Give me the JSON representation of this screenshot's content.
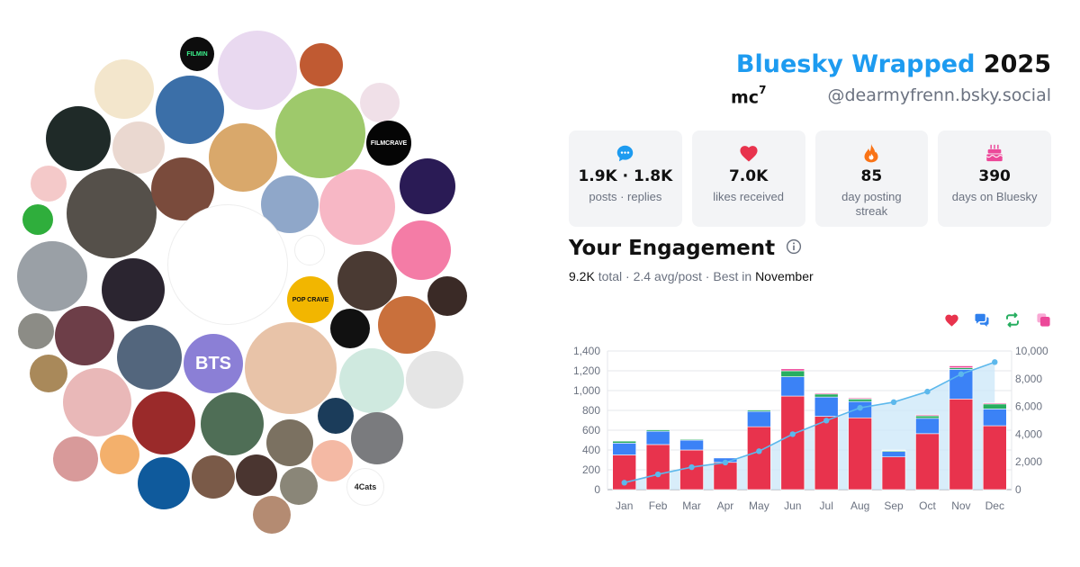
{
  "header": {
    "brand": "Bluesky Wrapped",
    "year": "2025",
    "display_name": "mc",
    "display_name_sup": "7",
    "handle": "@dearmyfrenn.bsky.social"
  },
  "stats": [
    {
      "icon": "chat-bubble-icon",
      "value": "1.9K · 1.8K",
      "label": "posts · replies",
      "color": "#1d9bf0"
    },
    {
      "icon": "heart-icon",
      "value": "7.0K",
      "label": "likes received",
      "color": "#e8334d"
    },
    {
      "icon": "flame-icon",
      "value": "85",
      "label": "day posting streak",
      "color": "#f97316"
    },
    {
      "icon": "cake-icon",
      "value": "390",
      "label": "days on Bluesky",
      "color": "#ec4899"
    }
  ],
  "engagement": {
    "title": "Your Engagement",
    "total": "9.2K",
    "total_word": "total",
    "avg": "2.4 avg/post",
    "best_prefix": "Best in",
    "best_month": "November"
  },
  "legend": [
    {
      "icon": "heart-icon",
      "color": "#e8334d"
    },
    {
      "icon": "reply-icon",
      "color": "#2f80ed"
    },
    {
      "icon": "repost-icon",
      "color": "#27ae60"
    },
    {
      "icon": "quote-icon",
      "color": "#ec4899"
    }
  ],
  "chart_data": {
    "type": "bar",
    "stacked": true,
    "categories": [
      "Jan",
      "Feb",
      "Mar",
      "Apr",
      "May",
      "Jun",
      "Jul",
      "Aug",
      "Sep",
      "Oct",
      "Nov",
      "Dec"
    ],
    "series": [
      {
        "color": "#e8334d",
        "values": [
          350,
          455,
          400,
          275,
          635,
          945,
          740,
          725,
          330,
          565,
          915,
          645
        ]
      },
      {
        "color": "#3b82f6",
        "values": [
          120,
          135,
          100,
          45,
          155,
          195,
          195,
          165,
          55,
          155,
          300,
          170
        ]
      },
      {
        "color": "#27ae60",
        "values": [
          20,
          15,
          10,
          5,
          15,
          60,
          30,
          25,
          10,
          25,
          15,
          50
        ]
      },
      {
        "color": "#ec4899",
        "values": [
          5,
          5,
          5,
          3,
          5,
          20,
          10,
          10,
          5,
          10,
          20,
          10
        ]
      }
    ],
    "cumulative": {
      "color": "#5cb8ec",
      "values": [
        500,
        1100,
        1620,
        1950,
        2770,
        4000,
        4980,
        5900,
        6310,
        7070,
        8330,
        9200
      ]
    },
    "left_axis": {
      "ticks": [
        "0",
        "200",
        "400",
        "600",
        "800",
        "1,000",
        "1,200",
        "1,400"
      ],
      "ylim": [
        0,
        1400
      ]
    },
    "right_axis": {
      "ticks": [
        "0",
        "2,000",
        "4,000",
        "6,000",
        "8,000",
        "10,000"
      ],
      "ylim": [
        0,
        10000
      ]
    },
    "grid": true
  },
  "avatars": [
    {
      "name": "avatar-filmin",
      "color": "#0d0d0d",
      "text": "FILMIN",
      "text_color": "#3cf28c"
    },
    {
      "name": "avatar-anime-couple",
      "color": "#e9d9f0"
    },
    {
      "name": "avatar-red-hair",
      "color": "#c05a32"
    },
    {
      "name": "avatar-pixel-character",
      "color": "#f3e6cc"
    },
    {
      "name": "avatar-curly-hair",
      "color": "#3b6fa8"
    },
    {
      "name": "avatar-anime-girl-green",
      "color": "#9ec96b"
    },
    {
      "name": "avatar-hamster",
      "color": "#f0e0e8"
    },
    {
      "name": "avatar-man-dark",
      "color": "#1f2a28"
    },
    {
      "name": "avatar-santa-cat",
      "color": "#ead8d0"
    },
    {
      "name": "avatar-glasses-girl",
      "color": "#d9a86b"
    },
    {
      "name": "avatar-filmcrave",
      "color": "#050505",
      "text": "FILMCRAVE",
      "text_color": "#ffffff"
    },
    {
      "name": "avatar-pink-bow",
      "color": "#f4c9c9"
    },
    {
      "name": "avatar-two-men",
      "color": "#55504a"
    },
    {
      "name": "avatar-woman-brown",
      "color": "#7a4b3c"
    },
    {
      "name": "avatar-chibi-boy",
      "color": "#8fa7c9"
    },
    {
      "name": "avatar-pink-anime",
      "color": "#f7b7c5"
    },
    {
      "name": "avatar-cherries",
      "color": "#2a1b55"
    },
    {
      "name": "avatar-yoshi",
      "color": "#2fae3c"
    },
    {
      "name": "avatar-ink-girl",
      "color": "#ffffff"
    },
    {
      "name": "avatar-black-heart",
      "color": "#ffffff"
    },
    {
      "name": "avatar-orange-anime",
      "color": "#f47ca6"
    },
    {
      "name": "avatar-bearded-man",
      "color": "#9aa0a6"
    },
    {
      "name": "avatar-goth-woman",
      "color": "#2b2530"
    },
    {
      "name": "avatar-pop-crave",
      "color": "#f2b600",
      "text": "POP CRAVE",
      "text_color": "#111111"
    },
    {
      "name": "avatar-glasses-man",
      "color": "#4a3a33"
    },
    {
      "name": "avatar-smiling-woman",
      "color": "#3a2a26"
    },
    {
      "name": "avatar-cat-small",
      "color": "#8c8c86"
    },
    {
      "name": "avatar-dark-hair-woman",
      "color": "#6d3e48"
    },
    {
      "name": "avatar-man-street",
      "color": "#53667d"
    },
    {
      "name": "avatar-bts",
      "color": "#8b7fd6",
      "text": "BTS",
      "text_color": "#ffffff"
    },
    {
      "name": "avatar-blonde-selfie",
      "color": "#e8c3a8"
    },
    {
      "name": "avatar-lightning",
      "color": "#111111"
    },
    {
      "name": "avatar-duo-women",
      "color": "#c9703c"
    },
    {
      "name": "avatar-peridot",
      "color": "#cfe9df"
    },
    {
      "name": "avatar-manga-boy",
      "color": "#e5e5e5"
    },
    {
      "name": "avatar-sunflower",
      "color": "#a9895a"
    },
    {
      "name": "avatar-plaid-cat",
      "color": "#e9b8b8"
    },
    {
      "name": "avatar-3d-girl",
      "color": "#9a2a2a"
    },
    {
      "name": "avatar-anime-man",
      "color": "#4f6e56"
    },
    {
      "name": "avatar-bearded-guy",
      "color": "#7b7161"
    },
    {
      "name": "avatar-alien",
      "color": "#1b3c5a"
    },
    {
      "name": "avatar-building",
      "color": "#7a7b7e"
    },
    {
      "name": "avatar-drawn-woman",
      "color": "#d89a9a"
    },
    {
      "name": "avatar-fox-girl",
      "color": "#f3b06c"
    },
    {
      "name": "avatar-blue-ring",
      "color": "#0f5a9c"
    },
    {
      "name": "avatar-santa-man",
      "color": "#7a5a48"
    },
    {
      "name": "avatar-woman-dark",
      "color": "#4a3530"
    },
    {
      "name": "avatar-man-glasses-2",
      "color": "#8a8678"
    },
    {
      "name": "avatar-pig",
      "color": "#f4b9a4"
    },
    {
      "name": "avatar-4cats",
      "color": "#ffffff",
      "text": "4Cats",
      "text_color": "#222222"
    },
    {
      "name": "avatar-woman-bottom",
      "color": "#b48b72"
    }
  ]
}
